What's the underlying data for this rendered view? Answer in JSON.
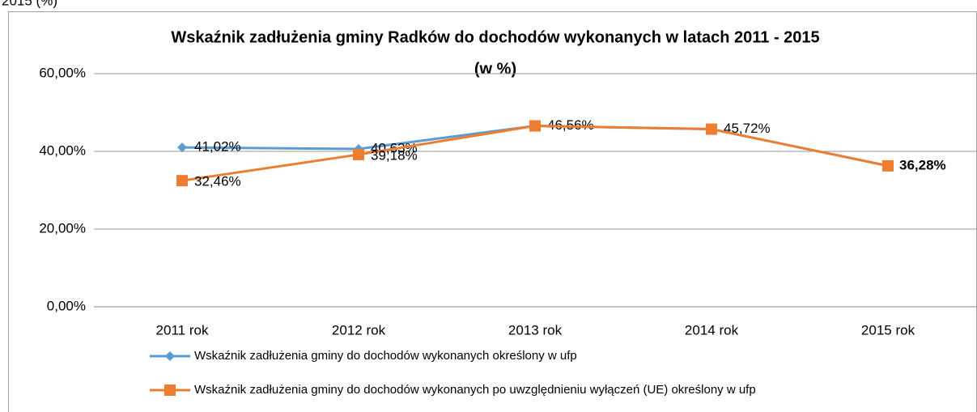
{
  "page_fragment": "2015 (%)",
  "chart_data": {
    "type": "line",
    "title": "Wskaźnik zadłużenia gminy Radków do dochodów wykonanych w latach 2011 - 2015",
    "subtitle": "(w %)",
    "categories": [
      "2011 rok",
      "2012 rok",
      "2013 rok",
      "2014 rok",
      "2015 rok"
    ],
    "series": [
      {
        "name": "Wskaźnik zadłużenia gminy do dochodów wykonanych określony w ufp",
        "color": "#5b9bd5",
        "marker": "diamond",
        "values": [
          41.02,
          40.63,
          46.56,
          45.72,
          36.28
        ],
        "value_labels": [
          "41,02%",
          "40,63%",
          "46,56%",
          "45,72%",
          null
        ]
      },
      {
        "name": "Wskaźnik zadłużenia gminy do dochodów wykonanych po uwzględnieniu wyłączeń (UE) określony w ufp",
        "color": "#ed7d31",
        "marker": "square",
        "values": [
          32.46,
          39.18,
          46.56,
          45.72,
          36.28
        ],
        "value_labels": [
          "32,46%",
          "39,18%",
          null,
          null,
          "36,28%"
        ]
      }
    ],
    "ylim": [
      0,
      60
    ],
    "yticks": [
      {
        "value": 0,
        "label": "0,00%"
      },
      {
        "value": 20,
        "label": "20,00%"
      },
      {
        "value": 40,
        "label": "40,00%"
      },
      {
        "value": 60,
        "label": "60,00%"
      }
    ],
    "grid": true,
    "legend": "bottom"
  }
}
